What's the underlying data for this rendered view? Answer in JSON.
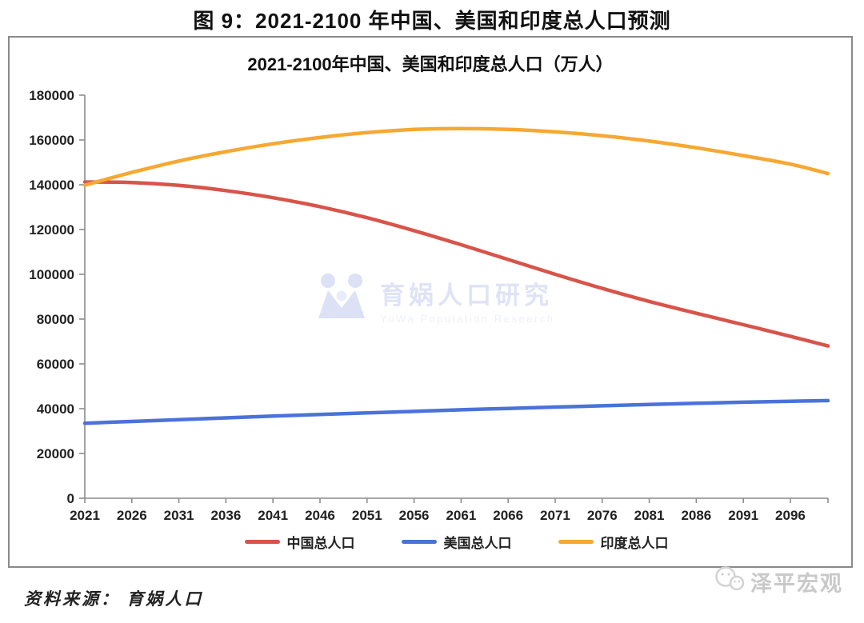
{
  "page": {
    "figure_title": "图 9：2021-2100 年中国、美国和印度总人口预测",
    "source_note": "资料来源： 育娲人口",
    "brand": "泽平宏观"
  },
  "watermark": {
    "cn": "育娲人口研究",
    "en": "YuWa Population Research"
  },
  "colors": {
    "china": "#d8544a",
    "usa": "#4a72d9",
    "india": "#f6a832",
    "axis": "#8c8c8c",
    "label": "#222222"
  },
  "chart_data": {
    "type": "line",
    "title": "2021-2100年中国、美国和印度总人口（万人）",
    "xlabel": "",
    "ylabel": "",
    "x": [
      2021,
      2026,
      2031,
      2036,
      2041,
      2046,
      2051,
      2056,
      2061,
      2066,
      2071,
      2076,
      2081,
      2086,
      2091,
      2096,
      2100
    ],
    "xtick_labels": [
      "2021",
      "2026",
      "2031",
      "2036",
      "2041",
      "2046",
      "2051",
      "2056",
      "2061",
      "2066",
      "2071",
      "2076",
      "2081",
      "2086",
      "2091",
      "2096"
    ],
    "xlim": [
      2021,
      2100
    ],
    "ylim": [
      0,
      180000
    ],
    "ytick_step": 20000,
    "grid": false,
    "legend_position": "bottom",
    "series": [
      {
        "id": "china",
        "name": "中国总人口",
        "color": "#d8544a",
        "values": [
          141200,
          141000,
          139700,
          137400,
          134200,
          130200,
          125300,
          119500,
          113200,
          106600,
          100000,
          93700,
          87900,
          82600,
          77500,
          72300,
          68000
        ]
      },
      {
        "id": "usa",
        "name": "美国总人口",
        "color": "#4a72d9",
        "values": [
          33500,
          34300,
          35100,
          35900,
          36700,
          37400,
          38100,
          38800,
          39500,
          40100,
          40700,
          41300,
          41900,
          42400,
          42900,
          43300,
          43600
        ]
      },
      {
        "id": "india",
        "name": "印度总人口",
        "color": "#f6a832",
        "values": [
          139800,
          145500,
          150600,
          154800,
          158300,
          161100,
          163300,
          164700,
          165100,
          164700,
          163600,
          161900,
          159500,
          156500,
          153000,
          149200,
          145000
        ]
      }
    ]
  }
}
